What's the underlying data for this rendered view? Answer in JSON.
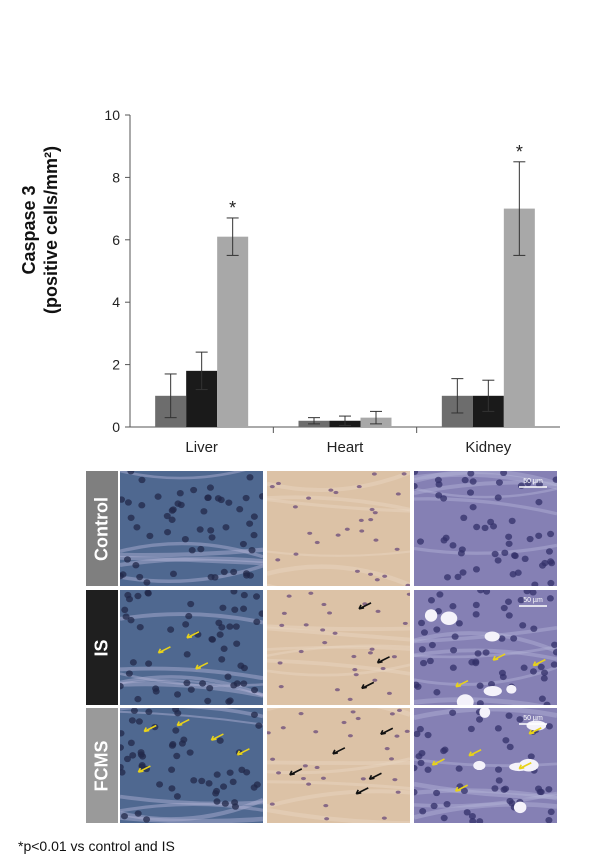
{
  "chart_data": {
    "type": "bar",
    "ylabel_line1": "Caspase 3",
    "ylabel_line2": "(positive cells/mm²)",
    "categories": [
      "Liver",
      "Heart",
      "Kidney"
    ],
    "ylim": [
      0,
      10
    ],
    "yticks": [
      0,
      2,
      4,
      6,
      8,
      10
    ],
    "series": [
      {
        "values": [
          1.0,
          0.2,
          1.0
        ],
        "errors": [
          0.7,
          0.1,
          0.55
        ],
        "color": "#6d6d6d"
      },
      {
        "values": [
          1.8,
          0.2,
          1.0
        ],
        "errors": [
          0.6,
          0.15,
          0.5
        ],
        "color": "#1a1a1a"
      },
      {
        "values": [
          6.1,
          0.3,
          7.0
        ],
        "errors": [
          0.6,
          0.2,
          1.5
        ],
        "color": "#a8a8a8"
      }
    ],
    "significance": [
      {
        "category": 0,
        "series": 2,
        "mark": "*"
      },
      {
        "category": 2,
        "series": 2,
        "mark": "*"
      }
    ]
  },
  "image_panel": {
    "rows": [
      {
        "label": "Control",
        "label_bg": "#7f7f7f"
      },
      {
        "label": "IS",
        "label_bg": "#1f1f1f"
      },
      {
        "label": "FCMS",
        "label_bg": "#9a9a9a"
      }
    ],
    "columns": [
      {
        "tissue": "liver",
        "bg": "#4f6890",
        "nucleus": "#22284a"
      },
      {
        "tissue": "heart",
        "bg": "#dcc2a6",
        "nucleus": "#6a4a7a"
      },
      {
        "tissue": "kidney",
        "bg": "#8580b4",
        "nucleus": "#33306a"
      }
    ],
    "scale_label": "50 µm",
    "arrow_colors": [
      "#e8d21a",
      "#111111"
    ]
  },
  "footnote": "*p<0.01 vs control and IS"
}
